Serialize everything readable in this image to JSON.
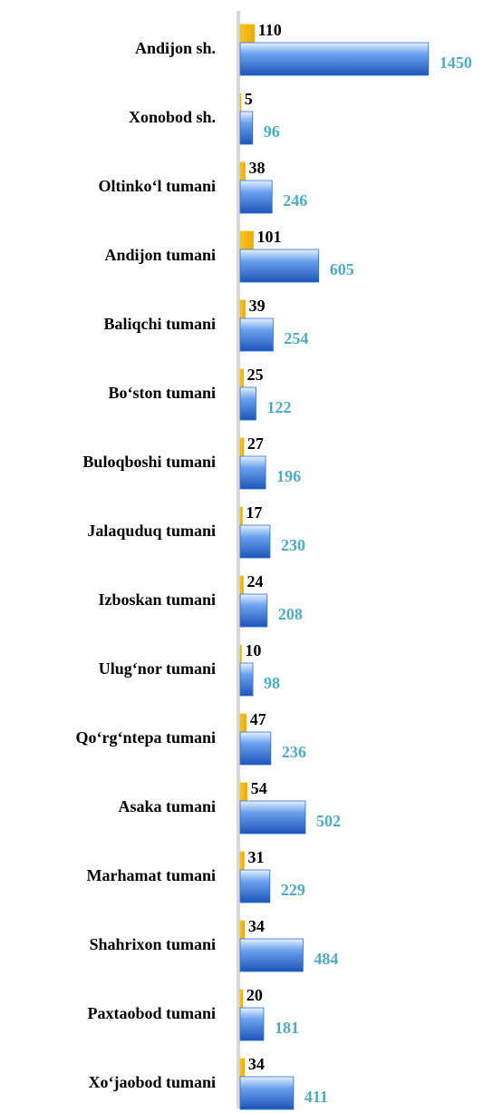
{
  "chart_data": {
    "type": "bar",
    "orientation": "horizontal",
    "categories": [
      "Andijon sh.",
      "Xonobod sh.",
      "Oltinko‘l tumani",
      "Andijon tumani",
      "Baliqchi tumani",
      "Bo‘ston tumani",
      "Buloqboshi tumani",
      "Jalaquduq tumani",
      "Izboskan tumani",
      "Ulug‘nor tumani",
      "Qo‘rg‘ntepa tumani",
      "Asaka tumani",
      "Marhamat tumani",
      "Shahrixon tumani",
      "Paxtaobod tumani",
      "Xo‘jaobod tumani"
    ],
    "series": [
      {
        "color": "#f5b800",
        "label_color": "#000000",
        "values": [
          110,
          5,
          38,
          101,
          39,
          25,
          27,
          17,
          24,
          10,
          47,
          54,
          31,
          34,
          20,
          34
        ]
      },
      {
        "color": "#2a6fd6",
        "label_color": "#4bacc6",
        "values": [
          1450,
          96,
          246,
          605,
          254,
          122,
          196,
          230,
          208,
          98,
          236,
          502,
          229,
          484,
          181,
          411
        ]
      }
    ],
    "xlim": [
      0,
      1500
    ]
  }
}
